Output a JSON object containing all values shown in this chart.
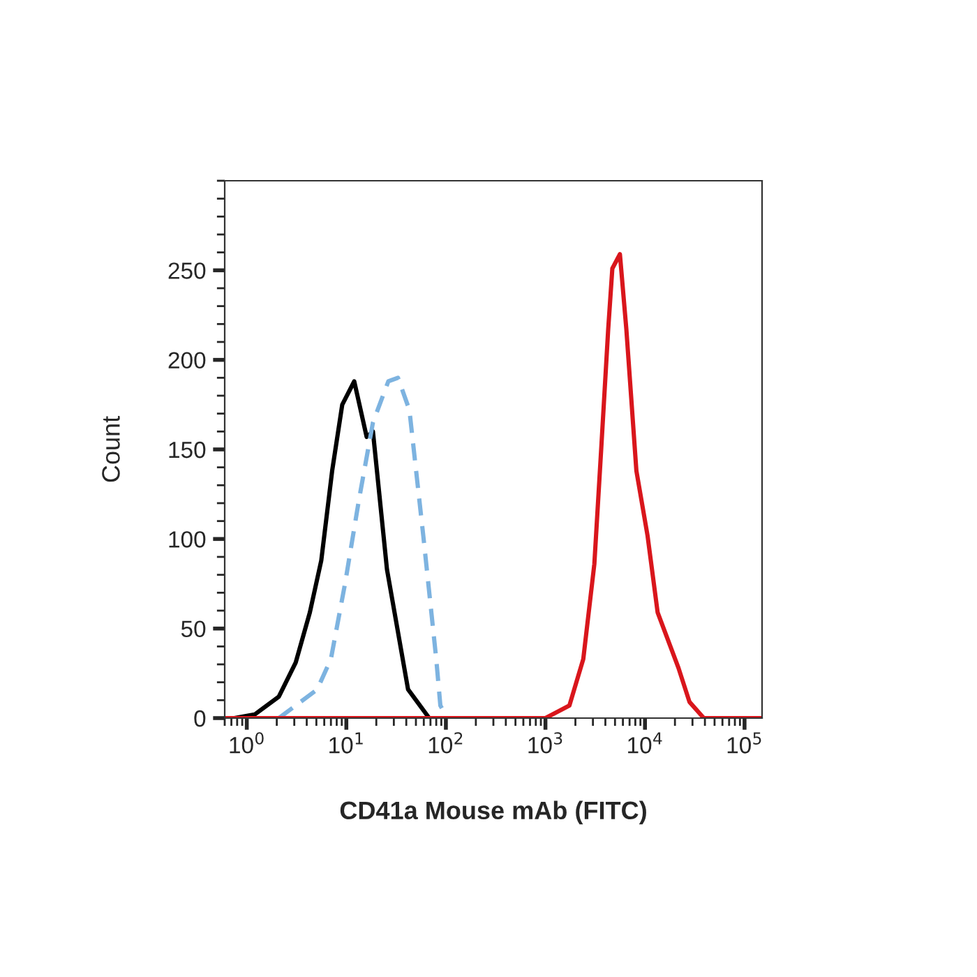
{
  "chart_data": {
    "type": "line",
    "xlabel": "CD41a Mouse mAb (FITC)",
    "ylabel": "Count",
    "log": "x",
    "grid": false,
    "marker": "none",
    "xlim": [
      0.6,
      150000
    ],
    "ylim": [
      0,
      300
    ],
    "xticks": [
      {
        "value": 1,
        "label": "10$^{0}$"
      },
      {
        "value": 10,
        "label": "10$^{1}$"
      },
      {
        "value": 100,
        "label": "10$^{2}$"
      },
      {
        "value": 1000,
        "label": "10$^{3}$"
      },
      {
        "value": 10000,
        "label": "10$^{4}$"
      },
      {
        "value": 100000,
        "label": "10$^{5}$"
      }
    ],
    "yticks": [
      0,
      50,
      100,
      150,
      200,
      250
    ],
    "series": [
      {
        "color": "#000000",
        "line_style": "solid",
        "x": [
          0.75,
          1.2,
          2.1,
          3.1,
          4.3,
          5.6,
          7.2,
          9.1,
          12,
          16,
          18.5,
          25.6,
          41.7,
          68
        ],
        "values": [
          0,
          2,
          12,
          31,
          59,
          88,
          138,
          175,
          188,
          157,
          160,
          83,
          16,
          0
        ]
      },
      {
        "color": "#7db3e0",
        "line_style": "dashed",
        "x": [
          2.1,
          5.1,
          7,
          9.7,
          13.4,
          18.5,
          26.4,
          33,
          43,
          59.5,
          80,
          88,
          104
        ],
        "values": [
          0,
          16,
          33,
          75,
          122,
          165,
          188,
          190,
          172,
          101,
          33,
          7,
          0
        ]
      },
      {
        "color": "#d9161c",
        "line_style": "solid",
        "x": [
          0.6,
          1000,
          1740,
          2400,
          3100,
          3640,
          4270,
          4700,
          5600,
          6500,
          8200,
          10600,
          13400,
          21700,
          28000,
          39000,
          150000
        ],
        "values": [
          0,
          0,
          7,
          33,
          86,
          151,
          217,
          251,
          259,
          217,
          138,
          102,
          59,
          28,
          9,
          0,
          0
        ]
      }
    ]
  }
}
